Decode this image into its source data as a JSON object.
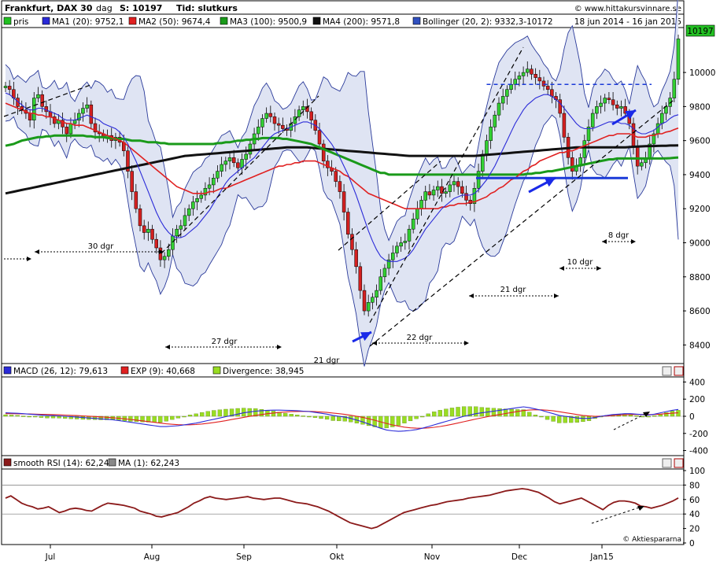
{
  "header": {
    "title": "Frankfurt, DAX 30",
    "sep": "-",
    "period": "dag",
    "last_label": "S: 10197",
    "type_label": "Tid: slutkurs",
    "date_range": "18 jun 2014 - 16 jan 2015",
    "site": "© www.hittakursvinnare.se",
    "last_price_badge": "10197"
  },
  "legend_main": [
    {
      "label": "pris",
      "color": "#22c022"
    },
    {
      "label": "MA1 (20): 9752,1",
      "color": "#2a2ad8"
    },
    {
      "label": "MA2 (50): 9674,4",
      "color": "#e02020"
    },
    {
      "label": "MA3 (100): 9500,9",
      "color": "#1a9a1a"
    },
    {
      "label": "MA4 (200): 9571,8",
      "color": "#111111"
    },
    {
      "label": "Bollinger (20, 2): 9332,3-10172",
      "color": "#3050c0"
    }
  ],
  "legend_macd": [
    {
      "label": "MACD (26, 12): 79,613",
      "color": "#2a2ad8"
    },
    {
      "label": "EXP (9): 40,668",
      "color": "#e02020"
    },
    {
      "label": "Divergence: 38,945",
      "color": "#99dd22"
    }
  ],
  "legend_rsi": [
    {
      "label": "smooth RSI (14): 62,243",
      "color": "#8b1a1a"
    },
    {
      "label": "MA (1): 62,243",
      "color": "#888888"
    }
  ],
  "annotations": {
    "d30": "30 dgr",
    "d27": "27 dgr",
    "d21a": "21 dgr",
    "d22": "22 dgr",
    "d21b": "21 dgr",
    "d10": "10 dgr",
    "d8": "8 dgr"
  },
  "footer": "© Aktiespararna",
  "chart_data": [
    {
      "type": "candlestick",
      "name": "price",
      "ylim": [
        8300,
        10250
      ],
      "yticks": [
        8400,
        8600,
        8800,
        9000,
        9200,
        9400,
        9600,
        9800,
        10000
      ],
      "xticks": [
        "Jul",
        "Aug",
        "Sep",
        "Okt",
        "Nov",
        "Dec",
        "Jan15"
      ],
      "close": [
        9920,
        9900,
        9850,
        9800,
        9780,
        9760,
        9720,
        9850,
        9870,
        9800,
        9770,
        9740,
        9700,
        9720,
        9680,
        9640,
        9700,
        9720,
        9760,
        9790,
        9810,
        9700,
        9650,
        9640,
        9620,
        9630,
        9600,
        9620,
        9590,
        9540,
        9420,
        9300,
        9200,
        9100,
        9060,
        9080,
        9020,
        8970,
        8900,
        8920,
        8960,
        9040,
        9080,
        9100,
        9160,
        9200,
        9240,
        9260,
        9280,
        9320,
        9340,
        9380,
        9420,
        9460,
        9480,
        9500,
        9470,
        9440,
        9490,
        9520,
        9580,
        9640,
        9680,
        9730,
        9760,
        9740,
        9700,
        9690,
        9670,
        9660,
        9700,
        9740,
        9780,
        9800,
        9770,
        9720,
        9660,
        9580,
        9480,
        9440,
        9420,
        9360,
        9300,
        9180,
        9050,
        8960,
        8860,
        8720,
        8600,
        8650,
        8680,
        8720,
        8800,
        8850,
        8900,
        8940,
        8980,
        9000,
        9010,
        9080,
        9140,
        9200,
        9250,
        9300,
        9280,
        9310,
        9330,
        9290,
        9300,
        9340,
        9360,
        9330,
        9290,
        9250,
        9230,
        9320,
        9420,
        9520,
        9600,
        9680,
        9750,
        9820,
        9860,
        9900,
        9930,
        9960,
        9980,
        10000,
        10020,
        9990,
        9970,
        9950,
        9920,
        9900,
        9860,
        9840,
        9760,
        9620,
        9500,
        9420,
        9450,
        9500,
        9600,
        9680,
        9760,
        9800,
        9820,
        9850,
        9840,
        9810,
        9790,
        9800,
        9760,
        9700,
        9560,
        9450,
        9470,
        9500,
        9580,
        9640,
        9700,
        9760,
        9800,
        9850,
        9960,
        10197
      ],
      "ma20": [
        9880,
        9870,
        9850,
        9830,
        9810,
        9790,
        9780,
        9780,
        9790,
        9790,
        9780,
        9770,
        9760,
        9750,
        9730,
        9720,
        9720,
        9720,
        9730,
        9740,
        9750,
        9740,
        9730,
        9720,
        9700,
        9690,
        9680,
        9670,
        9650,
        9620,
        9580,
        9530,
        9480,
        9420,
        9360,
        9300,
        9240,
        9180,
        9130,
        9090,
        9060,
        9040,
        9030,
        9030,
        9040,
        9060,
        9080,
        9100,
        9130,
        9160,
        9190,
        9230,
        9270,
        9310,
        9350,
        9380,
        9400,
        9420,
        9440,
        9460,
        9480,
        9500,
        9530,
        9560,
        9590,
        9620,
        9640,
        9650,
        9660,
        9670,
        9680,
        9690,
        9700,
        9710,
        9710,
        9700,
        9690,
        9670,
        9640,
        9610,
        9580,
        9540,
        9500,
        9450,
        9400,
        9340,
        9280,
        9210,
        9140,
        9070,
        9010,
        8960,
        8920,
        8900,
        8890,
        8890,
        8890,
        8900,
        8910,
        8930,
        8960,
        9000,
        9040,
        9080,
        9110,
        9140,
        9170,
        9200,
        9220,
        9240,
        9260,
        9270,
        9280,
        9280,
        9280,
        9290,
        9310,
        9340,
        9370,
        9410,
        9450,
        9500,
        9550,
        9600,
        9650,
        9700,
        9740,
        9780,
        9810,
        9830,
        9850,
        9860,
        9870,
        9870,
        9860,
        9840,
        9820,
        9790,
        9760,
        9730,
        9700,
        9680,
        9670,
        9670,
        9670,
        9680,
        9690,
        9700,
        9710,
        9710,
        9710,
        9700,
        9700,
        9690,
        9670,
        9650,
        9640,
        9640,
        9650,
        9660,
        9680,
        9700,
        9710,
        9730,
        9745,
        9752
      ],
      "ma50": [
        9820,
        9810,
        9800,
        9790,
        9780,
        9770,
        9760,
        9760,
        9750,
        9750,
        9740,
        9740,
        9730,
        9720,
        9710,
        9700,
        9700,
        9690,
        9690,
        9690,
        9680,
        9670,
        9660,
        9650,
        9640,
        9630,
        9620,
        9610,
        9600,
        9590,
        9570,
        9550,
        9530,
        9510,
        9490,
        9470,
        9450,
        9430,
        9410,
        9390,
        9370,
        9350,
        9330,
        9320,
        9310,
        9300,
        9290,
        9290,
        9290,
        9290,
        9300,
        9300,
        9310,
        9320,
        9320,
        9330,
        9340,
        9350,
        9360,
        9370,
        9380,
        9390,
        9400,
        9410,
        9420,
        9430,
        9440,
        9450,
        9450,
        9460,
        9460,
        9470,
        9470,
        9480,
        9480,
        9480,
        9480,
        9470,
        9460,
        9450,
        9440,
        9430,
        9420,
        9400,
        9390,
        9370,
        9350,
        9330,
        9310,
        9290,
        9280,
        9270,
        9260,
        9250,
        9240,
        9230,
        9220,
        9210,
        9200,
        9200,
        9200,
        9200,
        9200,
        9200,
        9200,
        9200,
        9200,
        9210,
        9210,
        9220,
        9220,
        9230,
        9230,
        9230,
        9240,
        9240,
        9250,
        9260,
        9270,
        9290,
        9300,
        9320,
        9330,
        9350,
        9370,
        9380,
        9400,
        9420,
        9430,
        9450,
        9460,
        9480,
        9490,
        9500,
        9510,
        9520,
        9530,
        9530,
        9540,
        9540,
        9550,
        9560,
        9570,
        9580,
        9590,
        9600,
        9610,
        9620,
        9630,
        9630,
        9640,
        9640,
        9640,
        9640,
        9630,
        9620,
        9620,
        9620,
        9630,
        9630,
        9640,
        9640,
        9650,
        9655,
        9665,
        9674
      ],
      "ma100": [
        9570,
        9575,
        9580,
        9590,
        9600,
        9605,
        9610,
        9615,
        9620,
        9620,
        9625,
        9625,
        9630,
        9630,
        9630,
        9630,
        9630,
        9630,
        9630,
        9630,
        9625,
        9625,
        9620,
        9620,
        9620,
        9615,
        9615,
        9610,
        9610,
        9610,
        9605,
        9600,
        9600,
        9600,
        9595,
        9590,
        9590,
        9590,
        9585,
        9585,
        9580,
        9580,
        9580,
        9580,
        9580,
        9580,
        9580,
        9580,
        9580,
        9580,
        9580,
        9580,
        9585,
        9585,
        9590,
        9590,
        9595,
        9600,
        9600,
        9605,
        9605,
        9610,
        9610,
        9615,
        9615,
        9615,
        9615,
        9615,
        9610,
        9610,
        9605,
        9600,
        9595,
        9590,
        9585,
        9580,
        9570,
        9560,
        9550,
        9540,
        9530,
        9520,
        9510,
        9500,
        9490,
        9480,
        9470,
        9460,
        9450,
        9440,
        9430,
        9420,
        9410,
        9410,
        9400,
        9400,
        9400,
        9400,
        9400,
        9400,
        9400,
        9400,
        9400,
        9400,
        9400,
        9400,
        9400,
        9400,
        9400,
        9400,
        9400,
        9400,
        9400,
        9400,
        9400,
        9400,
        9400,
        9400,
        9400,
        9400,
        9400,
        9400,
        9400,
        9400,
        9400,
        9400,
        9400,
        9400,
        9405,
        9405,
        9410,
        9410,
        9415,
        9420,
        9420,
        9425,
        9430,
        9435,
        9440,
        9445,
        9450,
        9455,
        9460,
        9465,
        9470,
        9475,
        9480,
        9485,
        9490,
        9490,
        9495,
        9495,
        9495,
        9495,
        9495,
        9495,
        9495,
        9495,
        9495,
        9495,
        9495,
        9495,
        9496,
        9497,
        9499,
        9501
      ],
      "ma200": [
        9290,
        9295,
        9300,
        9305,
        9310,
        9315,
        9320,
        9325,
        9330,
        9335,
        9340,
        9345,
        9350,
        9355,
        9360,
        9365,
        9370,
        9375,
        9380,
        9385,
        9390,
        9395,
        9400,
        9405,
        9410,
        9415,
        9420,
        9425,
        9430,
        9435,
        9440,
        9445,
        9450,
        9455,
        9460,
        9465,
        9470,
        9475,
        9480,
        9485,
        9490,
        9495,
        9500,
        9505,
        9510,
        9512,
        9514,
        9516,
        9518,
        9520,
        9522,
        9524,
        9526,
        9528,
        9530,
        9532,
        9534,
        9536,
        9538,
        9540,
        9542,
        9544,
        9546,
        9548,
        9550,
        9552,
        9554,
        9556,
        9558,
        9560,
        9560,
        9560,
        9560,
        9560,
        9560,
        9558,
        9556,
        9554,
        9552,
        9550,
        9548,
        9546,
        9544,
        9542,
        9540,
        9538,
        9536,
        9534,
        9532,
        9530,
        9528,
        9526,
        9524,
        9522,
        9520,
        9518,
        9516,
        9514,
        9512,
        9510,
        9510,
        9510,
        9510,
        9510,
        9510,
        9510,
        9510,
        9510,
        9510,
        9510,
        9510,
        9510,
        9510,
        9510,
        9510,
        9510,
        9512,
        9514,
        9516,
        9518,
        9520,
        9522,
        9524,
        9526,
        9528,
        9530,
        9532,
        9534,
        9536,
        9538,
        9540,
        9542,
        9544,
        9546,
        9548,
        9550,
        9552,
        9554,
        9556,
        9558,
        9560,
        9560,
        9560,
        9560,
        9560,
        9560,
        9560,
        9560,
        9560,
        9560,
        9560,
        9560,
        9560,
        9562,
        9564,
        9565,
        9566,
        9567,
        9568,
        9568,
        9569,
        9570,
        9570,
        9571,
        9571,
        9572
      ],
      "resistance_level": 9930,
      "support_level": 9380
    },
    {
      "type": "macd",
      "ylim": [
        -450,
        450
      ],
      "yticks": [
        -400,
        -200,
        0,
        200,
        400
      ],
      "macd": [
        40,
        38,
        35,
        30,
        25,
        20,
        15,
        10,
        8,
        5,
        0,
        -5,
        -10,
        -15,
        -20,
        -25,
        -30,
        -35,
        -40,
        -50,
        -60,
        -70,
        -80,
        -90,
        -100,
        -110,
        -120,
        -120,
        -115,
        -110,
        -100,
        -90,
        -80,
        -65,
        -50,
        -35,
        -20,
        -5,
        10,
        25,
        40,
        50,
        60,
        65,
        70,
        72,
        72,
        70,
        68,
        65,
        60,
        55,
        45,
        35,
        25,
        10,
        0,
        -10,
        -25,
        -45,
        -65,
        -90,
        -115,
        -140,
        -160,
        -170,
        -175,
        -172,
        -165,
        -155,
        -140,
        -120,
        -100,
        -80,
        -60,
        -40,
        -20,
        0,
        15,
        30,
        40,
        50,
        60,
        70,
        80,
        90,
        100,
        110,
        100,
        85,
        70,
        50,
        30,
        10,
        0,
        -10,
        -20,
        -25,
        -25,
        -15,
        0,
        10,
        20,
        25,
        30,
        30,
        25,
        20,
        15,
        25,
        40,
        55,
        70,
        79.6
      ],
      "signal": [
        30,
        30,
        29,
        28,
        27,
        25,
        23,
        21,
        19,
        17,
        14,
        11,
        8,
        5,
        1,
        -3,
        -7,
        -12,
        -17,
        -23,
        -30,
        -37,
        -45,
        -53,
        -62,
        -71,
        -80,
        -88,
        -94,
        -98,
        -100,
        -99,
        -96,
        -90,
        -82,
        -73,
        -62,
        -51,
        -38,
        -26,
        -13,
        -1,
        10,
        20,
        30,
        38,
        45,
        50,
        54,
        56,
        57,
        57,
        54,
        50,
        45,
        38,
        30,
        22,
        12,
        0,
        -13,
        -29,
        -46,
        -65,
        -84,
        -101,
        -116,
        -127,
        -135,
        -139,
        -140,
        -136,
        -129,
        -119,
        -107,
        -94,
        -79,
        -63,
        -48,
        -32,
        -18,
        -5,
        8,
        20,
        32,
        44,
        56,
        67,
        73,
        76,
        75,
        71,
        63,
        53,
        42,
        31,
        20,
        10,
        4,
        0,
        1,
        4,
        8,
        13,
        17,
        20,
        21,
        21,
        20,
        21,
        25,
        31,
        36,
        40.7
      ]
    },
    {
      "type": "line",
      "name": "smooth RSI",
      "ylim": [
        0,
        100
      ],
      "yticks": [
        0,
        20,
        40,
        60,
        80,
        100
      ],
      "values": [
        62,
        65,
        60,
        55,
        52,
        50,
        47,
        48,
        50,
        46,
        42,
        44,
        47,
        48,
        47,
        45,
        44,
        48,
        52,
        55,
        54,
        53,
        52,
        50,
        48,
        44,
        42,
        40,
        37,
        36,
        38,
        40,
        42,
        46,
        50,
        55,
        58,
        62,
        64,
        62,
        61,
        60,
        61,
        62,
        63,
        64,
        62,
        61,
        60,
        61,
        62,
        62,
        60,
        58,
        56,
        55,
        54,
        52,
        50,
        47,
        44,
        40,
        36,
        32,
        28,
        26,
        24,
        22,
        20,
        22,
        26,
        30,
        34,
        38,
        42,
        44,
        46,
        48,
        50,
        52,
        53,
        55,
        57,
        58,
        59,
        60,
        62,
        63,
        64,
        65,
        66,
        68,
        70,
        72,
        73,
        74,
        75,
        74,
        72,
        70,
        66,
        62,
        57,
        54,
        56,
        58,
        60,
        62,
        58,
        54,
        50,
        46,
        52,
        56,
        58,
        58,
        57,
        55,
        51,
        50,
        48,
        50,
        52,
        55,
        58,
        62.2
      ]
    }
  ]
}
